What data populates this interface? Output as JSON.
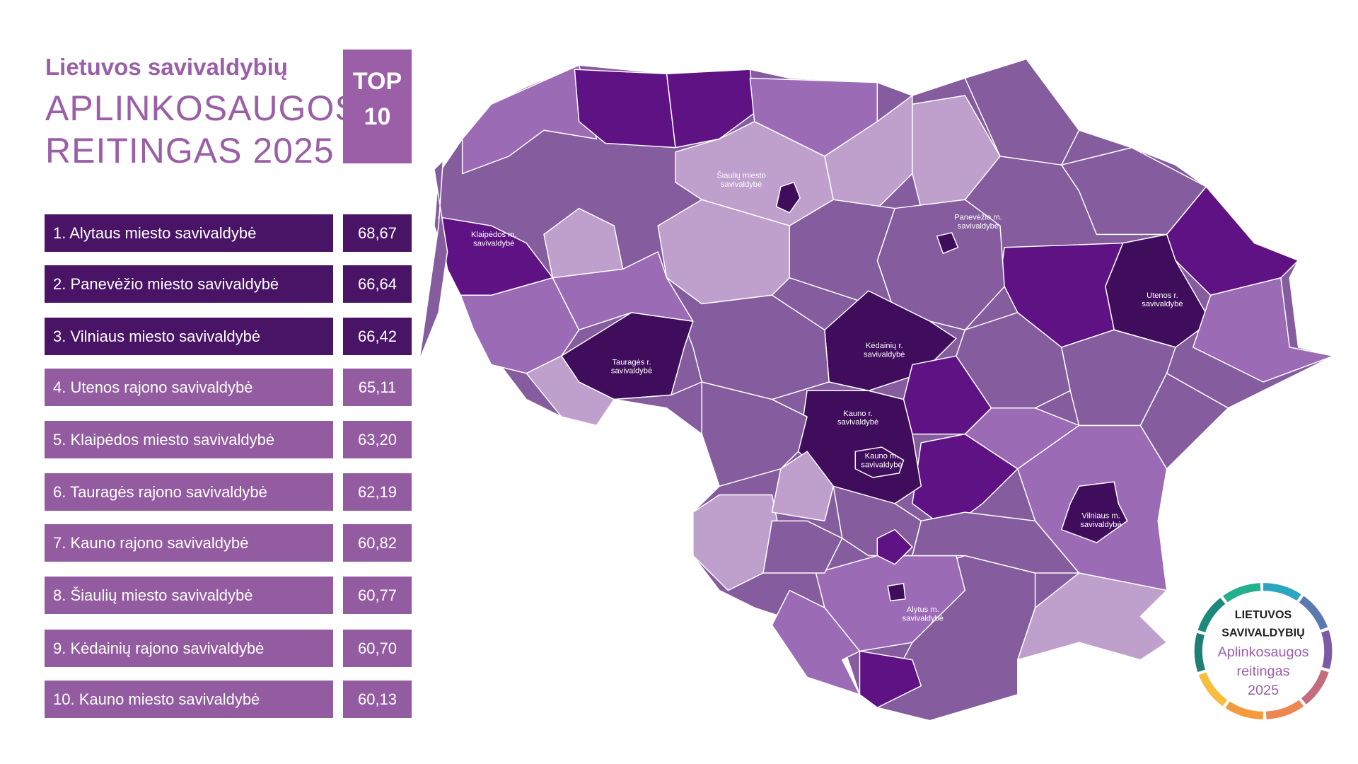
{
  "header": {
    "subtitle": "Lietuvos savivaldybių",
    "title_line1": "APLINKOSAUGOS",
    "title_line2": "REITINGAS 2025",
    "badge_line1": "TOP",
    "badge_line2": "10"
  },
  "ranking": [
    {
      "name": "1. Alytaus miesto savivaldybė",
      "score": "68,67"
    },
    {
      "name": "2. Panevėžio miesto savivaldybė",
      "score": "66,64"
    },
    {
      "name": "3. Vilniaus miesto savivaldybė",
      "score": "66,42"
    },
    {
      "name": "4. Utenos rajono savivaldybė",
      "score": "65,11"
    },
    {
      "name": "5. Klaipėdos miesto savivaldybė",
      "score": "63,20"
    },
    {
      "name": "6. Tauragės rajono savivaldybė",
      "score": "62,19"
    },
    {
      "name": "7. Kauno rajono savivaldybė",
      "score": "60,82"
    },
    {
      "name": "8. Šiaulių miesto savivaldybė",
      "score": "60,77"
    },
    {
      "name": "9. Kėdainių rajono savivaldybė",
      "score": "60,70"
    },
    {
      "name": "10. Kauno miesto savivaldybė",
      "score": "60,13"
    }
  ],
  "map_labels": [
    {
      "lines": [
        "Šiaulių miesto",
        "savivaldybė"
      ]
    },
    {
      "lines": [
        "Panevėžio m.",
        "savivaldybė"
      ]
    },
    {
      "lines": [
        "Klaipėdos m.",
        "savivaldybė"
      ]
    },
    {
      "lines": [
        "Utenos r.",
        "savivaldybė"
      ]
    },
    {
      "lines": [
        "Kėdainių r.",
        "savivaldybė"
      ]
    },
    {
      "lines": [
        "Tauragės r.",
        "savivaldybė"
      ]
    },
    {
      "lines": [
        "Kauno r.",
        "savivaldybė"
      ]
    },
    {
      "lines": [
        "Kauno m.",
        "savivaldybė"
      ]
    },
    {
      "lines": [
        "Vilniaus m.",
        "savivaldybė"
      ]
    },
    {
      "lines": [
        "Alytus m.",
        "savivaldybė"
      ]
    }
  ],
  "logo": {
    "line1": "LIETUVOS",
    "line2": "SAVIVALDYBIŲ",
    "line3": "Aplinkosaugos",
    "line4": "reitingas",
    "line5": "2025"
  }
}
